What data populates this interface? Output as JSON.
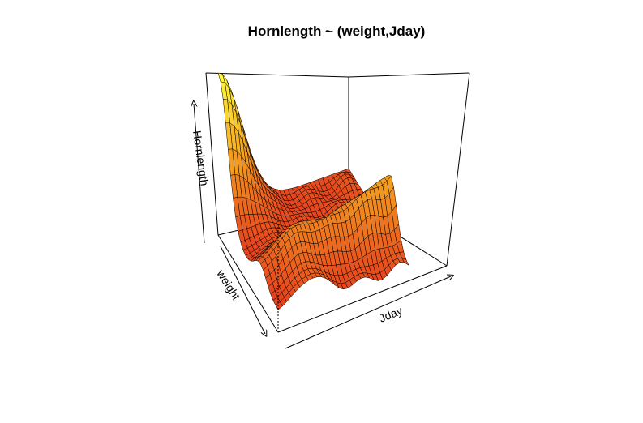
{
  "chart_data": {
    "type": "surface3d",
    "title": "Hornlength ~ (weight,Jday)",
    "xlabel": "Jday",
    "ylabel": "weight",
    "zlabel": "Hornlength",
    "grid": false,
    "box": true,
    "colormap": "heat",
    "colors": {
      "low": "#e53a1e",
      "mid": "#f4a020",
      "high": "#ffff3c",
      "mesh": "#000000"
    }
  }
}
